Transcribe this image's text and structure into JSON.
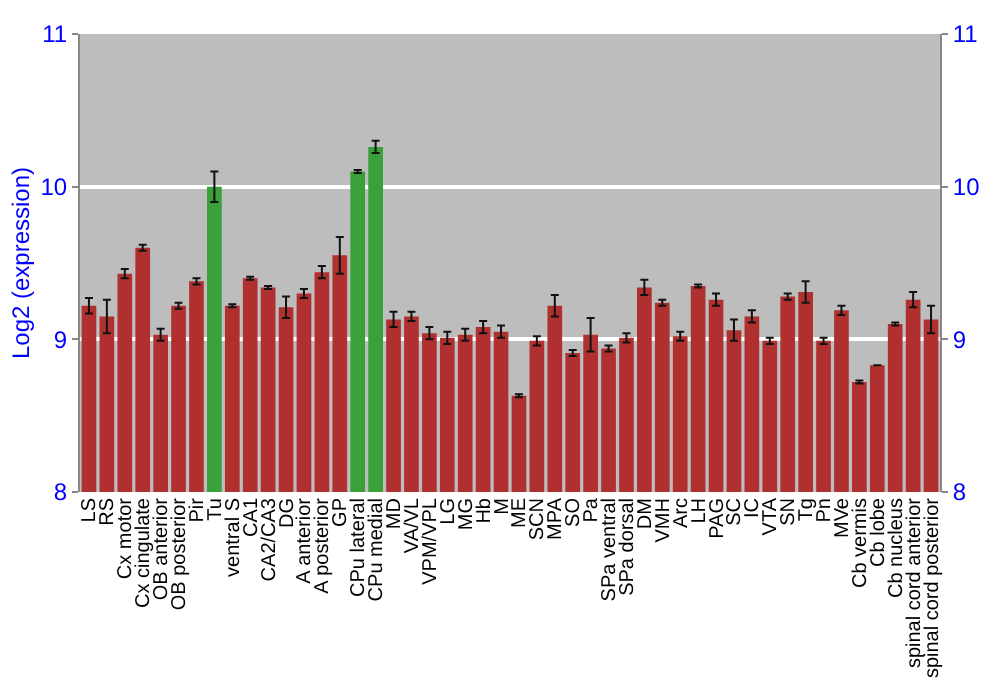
{
  "chart_data": {
    "type": "bar",
    "ylabel": "Log2 (expression)",
    "categories": [
      "LS",
      "RS",
      "Cx motor",
      "Cx cingulate",
      "OB anterior",
      "OB posterior",
      "Pir",
      "Tu",
      "ventral S",
      "CA1",
      "CA2/CA3",
      "DG",
      "A anterior",
      "A posterior",
      "GP",
      "CPu lateral",
      "CPu medial",
      "MD",
      "VA/VL",
      "VPM/VPL",
      "LG",
      "MG",
      "Hb",
      "M",
      "ME",
      "SCN",
      "MPA",
      "SO",
      "Pa",
      "SPa ventral",
      "SPa dorsal",
      "DM",
      "VMH",
      "Arc",
      "LH",
      "PAG",
      "SC",
      "IC",
      "VTA",
      "SN",
      "Tg",
      "Pn",
      "MVe",
      "Cb vermis",
      "Cb lobe",
      "Cb nucleus",
      "spinal cord anterior",
      "spinal cord posterior"
    ],
    "values": [
      9.22,
      9.15,
      9.43,
      9.6,
      9.03,
      9.22,
      9.38,
      10.0,
      9.22,
      9.4,
      9.34,
      9.21,
      9.3,
      9.44,
      9.55,
      10.1,
      10.26,
      9.13,
      9.15,
      9.04,
      9.01,
      9.03,
      9.08,
      9.05,
      8.63,
      8.99,
      9.22,
      8.91,
      9.03,
      8.94,
      9.01,
      9.34,
      9.24,
      9.02,
      9.35,
      9.26,
      9.06,
      9.15,
      8.99,
      9.28,
      9.31,
      8.99,
      9.19,
      8.72,
      8.83,
      9.1,
      9.26,
      9.13
    ],
    "errors": [
      0.05,
      0.11,
      0.03,
      0.02,
      0.04,
      0.02,
      0.02,
      0.1,
      0.01,
      0.01,
      0.01,
      0.07,
      0.03,
      0.04,
      0.12,
      0.01,
      0.04,
      0.05,
      0.03,
      0.04,
      0.04,
      0.04,
      0.04,
      0.04,
      0.01,
      0.03,
      0.07,
      0.02,
      0.11,
      0.02,
      0.03,
      0.05,
      0.02,
      0.03,
      0.01,
      0.04,
      0.07,
      0.04,
      0.02,
      0.02,
      0.07,
      0.02,
      0.03,
      0.01,
      null,
      0.01,
      0.05,
      0.09
    ],
    "colors": [
      "#b03030",
      "#b03030",
      "#b03030",
      "#b03030",
      "#b03030",
      "#b03030",
      "#b03030",
      "#3aa03a",
      "#b03030",
      "#b03030",
      "#b03030",
      "#b03030",
      "#b03030",
      "#b03030",
      "#b03030",
      "#3aa03a",
      "#3aa03a",
      "#b03030",
      "#b03030",
      "#b03030",
      "#b03030",
      "#b03030",
      "#b03030",
      "#b03030",
      "#b03030",
      "#b03030",
      "#b03030",
      "#b03030",
      "#b03030",
      "#b03030",
      "#b03030",
      "#b03030",
      "#b03030",
      "#b03030",
      "#b03030",
      "#b03030",
      "#b03030",
      "#b03030",
      "#b03030",
      "#b03030",
      "#b03030",
      "#b03030",
      "#b03030",
      "#b03030",
      "#b03030",
      "#b03030",
      "#b03030",
      "#b03030"
    ],
    "ylim": [
      8,
      11
    ],
    "yticks": [
      8,
      9,
      10,
      11
    ],
    "y2lim": [
      8,
      11
    ],
    "y2ticks": [
      8,
      9,
      10,
      11
    ],
    "grid": "y"
  }
}
